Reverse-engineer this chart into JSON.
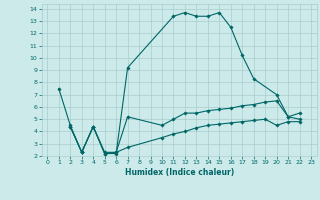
{
  "title": "",
  "xlabel": "Humidex (Indice chaleur)",
  "ylabel": "",
  "bg_color": "#cceaea",
  "grid_color": "#aacccc",
  "line_color": "#006666",
  "xlim": [
    -0.5,
    23.5
  ],
  "ylim": [
    2,
    14.4
  ],
  "xticks": [
    0,
    1,
    2,
    3,
    4,
    5,
    6,
    7,
    8,
    9,
    10,
    11,
    12,
    13,
    14,
    15,
    16,
    17,
    18,
    19,
    20,
    21,
    22,
    23
  ],
  "yticks": [
    2,
    3,
    4,
    5,
    6,
    7,
    8,
    9,
    10,
    11,
    12,
    13,
    14
  ],
  "line1_x": [
    1,
    2,
    3,
    4,
    5,
    6,
    7,
    11,
    12,
    13,
    14,
    15,
    16,
    17,
    18,
    20,
    21,
    22
  ],
  "line1_y": [
    7.5,
    4.5,
    2.3,
    4.4,
    2.2,
    2.2,
    9.2,
    13.4,
    13.7,
    13.4,
    13.4,
    13.7,
    12.5,
    10.2,
    8.3,
    7.0,
    5.2,
    5.5
  ],
  "line2_x": [
    2,
    3,
    4,
    5,
    6,
    7,
    10,
    11,
    12,
    13,
    14,
    15,
    16,
    17,
    18,
    19,
    20,
    21,
    22
  ],
  "line2_y": [
    4.4,
    2.3,
    4.4,
    2.2,
    2.3,
    5.2,
    4.5,
    5.0,
    5.5,
    5.5,
    5.7,
    5.8,
    5.9,
    6.1,
    6.2,
    6.4,
    6.5,
    5.2,
    5.0
  ],
  "line3_x": [
    2,
    3,
    4,
    5,
    6,
    7,
    10,
    11,
    12,
    13,
    14,
    15,
    16,
    17,
    18,
    19,
    20,
    21,
    22
  ],
  "line3_y": [
    4.4,
    2.3,
    4.4,
    2.3,
    2.3,
    2.7,
    3.5,
    3.8,
    4.0,
    4.3,
    4.5,
    4.6,
    4.7,
    4.8,
    4.9,
    5.0,
    4.5,
    4.8,
    4.8
  ]
}
